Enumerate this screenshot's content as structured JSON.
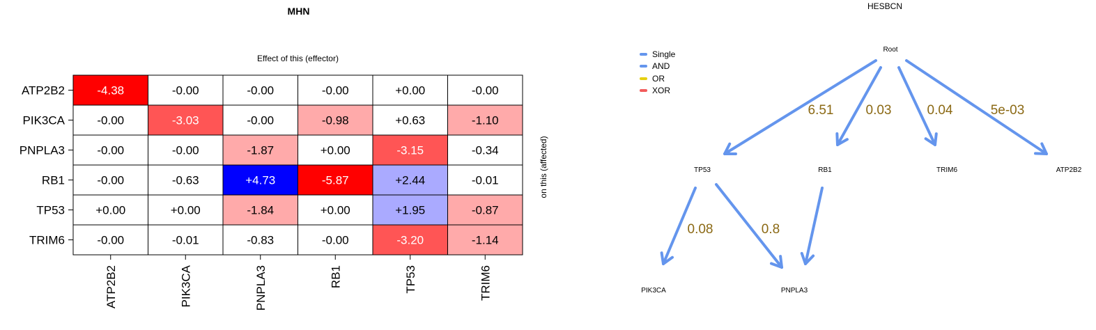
{
  "heatmap": {
    "title": "MHN",
    "subtitle": "Effect of this (effector)",
    "ylabel": "on this (affected)",
    "rows": [
      "ATP2B2",
      "PIK3CA",
      "PNPLA3",
      "RB1",
      "TP53",
      "TRIM6"
    ],
    "cols": [
      "ATP2B2",
      "PIK3CA",
      "PNPLA3",
      "RB1",
      "TP53",
      "TRIM6"
    ],
    "cells": [
      [
        "-4.38",
        "-0.00",
        "-0.00",
        "-0.00",
        "+0.00",
        "-0.00"
      ],
      [
        "-0.00",
        "-3.03",
        "-0.00",
        "-0.98",
        "+0.63",
        "-1.10"
      ],
      [
        "-0.00",
        "-0.00",
        "-1.87",
        "+0.00",
        "-3.15",
        "-0.34"
      ],
      [
        "-0.00",
        "-0.63",
        "+4.73",
        "-5.87",
        "+2.44",
        "-0.01"
      ],
      [
        "+0.00",
        "+0.00",
        "-1.84",
        "+0.00",
        "+1.95",
        "-0.87"
      ],
      [
        "-0.00",
        "-0.01",
        "-0.83",
        "-0.00",
        "-3.20",
        "-1.14"
      ]
    ],
    "fills": [
      [
        "#ff0000",
        "#ffffff",
        "#ffffff",
        "#ffffff",
        "#ffffff",
        "#ffffff"
      ],
      [
        "#ffffff",
        "#ff5555",
        "#ffffff",
        "#ffaaaa",
        "#ffffff",
        "#ffaaaa"
      ],
      [
        "#ffffff",
        "#ffffff",
        "#ffaaaa",
        "#ffffff",
        "#ff5555",
        "#ffffff"
      ],
      [
        "#ffffff",
        "#ffffff",
        "#0000ff",
        "#ff0000",
        "#aaaaff",
        "#ffffff"
      ],
      [
        "#ffffff",
        "#ffffff",
        "#ffaaaa",
        "#ffffff",
        "#aaaaff",
        "#ffaaaa"
      ],
      [
        "#ffffff",
        "#ffffff",
        "#ffffff",
        "#ffffff",
        "#ff5555",
        "#ffaaaa"
      ]
    ]
  },
  "graph": {
    "title": "HESBCN",
    "legend": [
      {
        "label": "Single",
        "color": "#6495ed"
      },
      {
        "label": "AND",
        "color": "#6495ed"
      },
      {
        "label": "OR",
        "color": "#e6d010"
      },
      {
        "label": "XOR",
        "color": "#f25c5c"
      }
    ],
    "nodes": [
      "Root",
      "TP53",
      "RB1",
      "TRIM6",
      "ATP2B2",
      "PIK3CA",
      "PNPLA3"
    ],
    "edges": [
      {
        "from": "Root",
        "to": "TP53",
        "label": "6.51"
      },
      {
        "from": "Root",
        "to": "RB1",
        "label": "0.03"
      },
      {
        "from": "Root",
        "to": "TRIM6",
        "label": "0.04"
      },
      {
        "from": "Root",
        "to": "ATP2B2",
        "label": "5e-03"
      },
      {
        "from": "TP53",
        "to": "PIK3CA",
        "label": "0.08"
      },
      {
        "from": "TP53",
        "to": "PNPLA3",
        "label": "0.8"
      },
      {
        "from": "RB1",
        "to": "PNPLA3",
        "label": ""
      }
    ],
    "edge_color": "#6495ed",
    "label_color": "#8b6914"
  }
}
